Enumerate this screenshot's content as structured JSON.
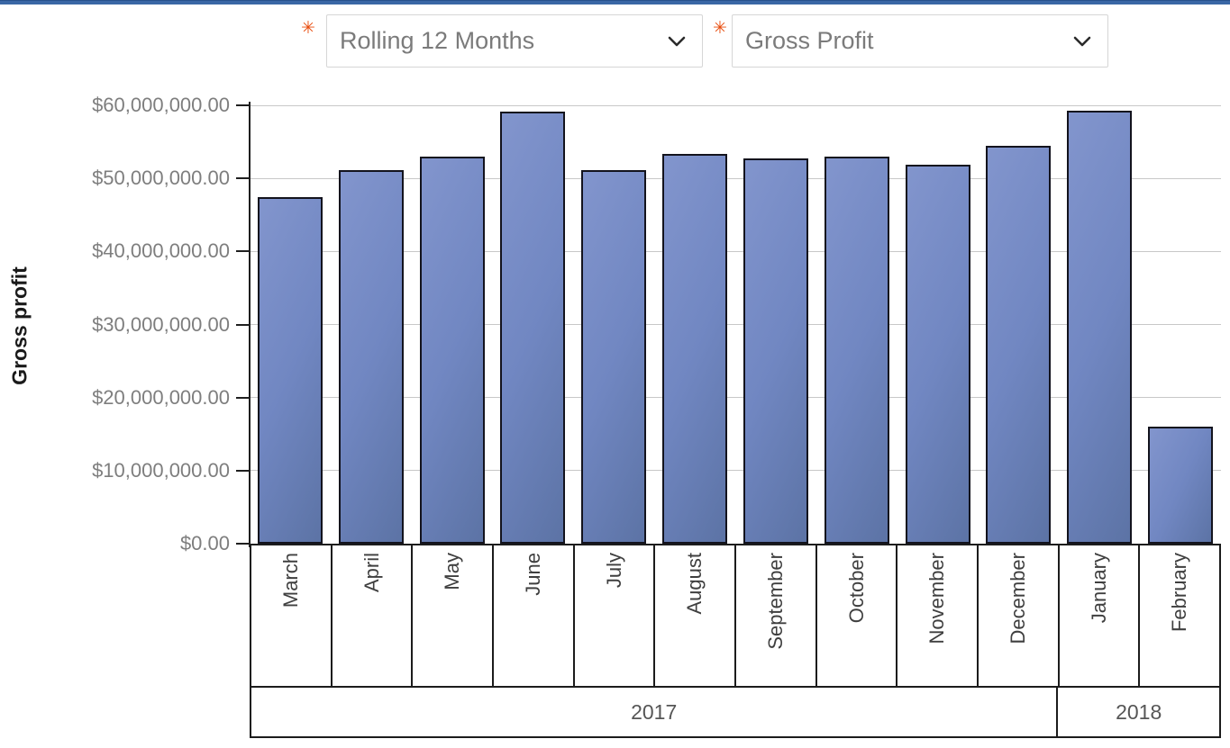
{
  "page": {
    "top_bar_color": "#3a67a5"
  },
  "filters": {
    "required_marker": "✳",
    "period": {
      "value": "Rolling 12 Months"
    },
    "metric": {
      "value": "Gross Profit"
    }
  },
  "chart_data": {
    "type": "bar",
    "title": "",
    "xlabel": "",
    "ylabel": "Gross profit",
    "categories": [
      "March",
      "April",
      "May",
      "June",
      "July",
      "August",
      "September",
      "October",
      "November",
      "December",
      "January",
      "February"
    ],
    "values": [
      47400000,
      51100000,
      53000000,
      59100000,
      51100000,
      53300000,
      52700000,
      53000000,
      51900000,
      54500000,
      59200000,
      16000000
    ],
    "ylim": [
      0,
      60000000
    ],
    "ytick_step": 10000000,
    "ytick_labels": [
      "$0.00",
      "$10,000,000.00",
      "$20,000,000.00",
      "$30,000,000.00",
      "$40,000,000.00",
      "$50,000,000.00",
      "$60,000,000.00"
    ],
    "x_groups": [
      {
        "label": "2017",
        "span": 10
      },
      {
        "label": "2018",
        "span": 2
      }
    ],
    "grid": true,
    "legend": false,
    "bar_color": "#7187c2",
    "bar_border_color": "#13131d",
    "gridline_color": "#c8c8c8"
  }
}
